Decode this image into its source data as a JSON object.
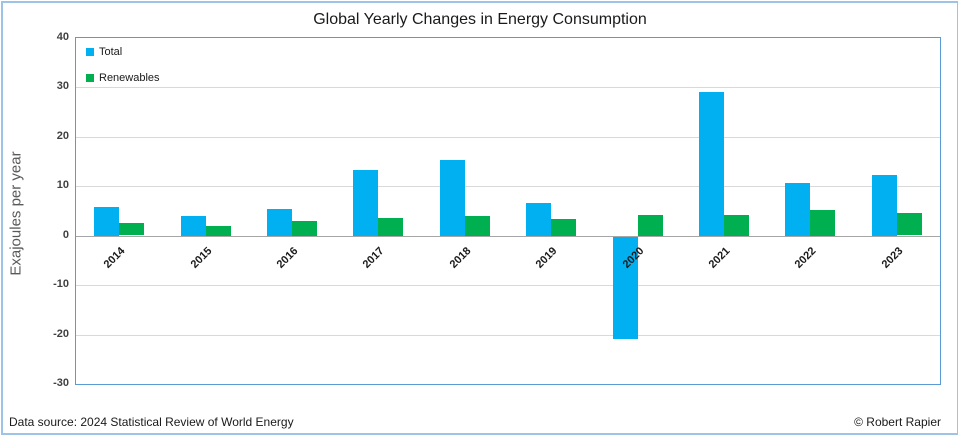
{
  "title": "Global Yearly Changes in Energy Consumption",
  "y_axis_title": "Exajoules per year",
  "footer": {
    "left": "Data source: 2024 Statistical Review of World Energy",
    "right": "© Robert Rapier"
  },
  "colors": {
    "total_bar": "#00B0F0",
    "renewables_bar": "#00B050",
    "plot_border": "#5B9BD5",
    "outer_border": "#9DC3E6",
    "gridline": "#D9D9D9",
    "zero_line": "#A6A6A6"
  },
  "chart_data": {
    "type": "bar",
    "title": "Global Yearly Changes in Energy Consumption",
    "xlabel": "",
    "ylabel": "Exajoules per year",
    "categories": [
      "2014",
      "2015",
      "2016",
      "2017",
      "2018",
      "2019",
      "2020",
      "2021",
      "2022",
      "2023"
    ],
    "series": [
      {
        "name": "Total",
        "color": "#00B0F0",
        "values": [
          5.8,
          4.0,
          5.5,
          13.3,
          15.4,
          6.7,
          -20.6,
          29.1,
          10.7,
          12.3
        ]
      },
      {
        "name": "Renewables",
        "color": "#00B050",
        "values": [
          2.5,
          2.0,
          3.0,
          3.6,
          4.0,
          3.4,
          4.2,
          4.2,
          5.3,
          4.5
        ]
      }
    ],
    "ylim": [
      -30,
      40
    ],
    "yticks": [
      40,
      30,
      20,
      10,
      0,
      -10,
      -20,
      -30
    ],
    "grid": true,
    "legend_position": "top-left"
  }
}
